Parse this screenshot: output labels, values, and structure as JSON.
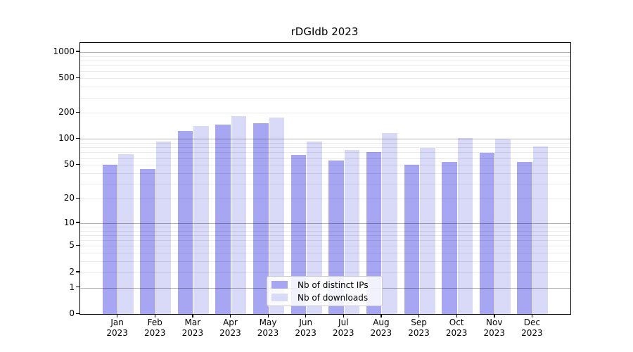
{
  "chart_data": {
    "type": "bar",
    "title": "rDGIdb 2023",
    "categories": [
      "Jan",
      "Feb",
      "Mar",
      "Apr",
      "May",
      "Jun",
      "Jul",
      "Aug",
      "Sep",
      "Oct",
      "Nov",
      "Dec"
    ],
    "x_tick_year": "2023",
    "series": [
      {
        "key": "distinct-ips",
        "name": "Nb of distinct IPs",
        "color": "#a6a6f2",
        "values": [
          50,
          45,
          123,
          147,
          151,
          65,
          56,
          71,
          50,
          54,
          69,
          54
        ]
      },
      {
        "key": "downloads",
        "name": "Nb of downloads",
        "color": "#d9d9f8",
        "values": [
          67,
          93,
          141,
          183,
          175,
          93,
          75,
          118,
          79,
          102,
          98,
          82
        ]
      }
    ],
    "y_scale": "log1p",
    "ylim": [
      0,
      1270
    ],
    "yticks": [
      0,
      1,
      2,
      5,
      10,
      20,
      50,
      100,
      200,
      500,
      1000
    ],
    "grid_major_at": [
      1,
      10,
      100,
      1000
    ],
    "grid_major_color": "rgba(0,0,0,0.30)",
    "grid_minor_color": "rgba(0,0,0,0.085)",
    "legend_position": "lower center",
    "xlabel": "",
    "ylabel": ""
  }
}
